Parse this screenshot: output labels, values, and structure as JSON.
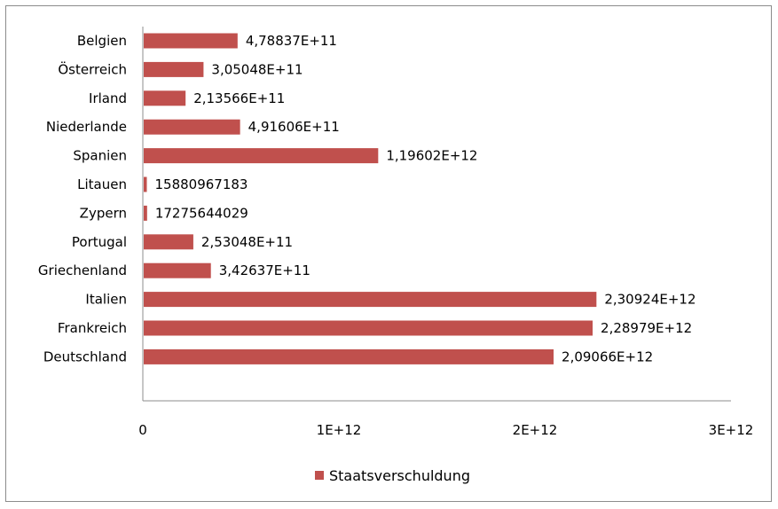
{
  "chart_data": {
    "type": "bar",
    "orientation": "horizontal",
    "categories": [
      "Belgien",
      "Österreich",
      "Irland",
      "Niederlande",
      "Spanien",
      "Litauen",
      "Zypern",
      "Portugal",
      "Griechenland",
      "Italien",
      "Frankreich",
      "Deutschland"
    ],
    "series": [
      {
        "name": "Staatsverschuldung",
        "values": [
          478837000000,
          305048000000,
          213566000000,
          491606000000,
          1196020000000,
          15880967183,
          17275644029,
          253048000000,
          342637000000,
          2309240000000,
          2289790000000,
          2090660000000
        ],
        "labels": [
          "4,78837E+11",
          "3,05048E+11",
          "2,13566E+11",
          "4,91606E+11",
          "1,19602E+12",
          "15880967183",
          "17275644029",
          "2,53048E+11",
          "3,42637E+11",
          "2,30924E+12",
          "2,28979E+12",
          "2,09066E+12"
        ],
        "color": "#c0504d"
      }
    ],
    "xlim": [
      0,
      3000000000000
    ],
    "xticks": [
      0,
      1000000000000,
      2000000000000,
      3000000000000
    ],
    "xtick_labels": [
      "0",
      "1E+12",
      "2E+12",
      "3E+12"
    ],
    "title": "",
    "xlabel": "",
    "ylabel": "",
    "grid": false,
    "legend": {
      "position": "bottom",
      "entries": [
        "Staatsverschuldung"
      ]
    }
  }
}
